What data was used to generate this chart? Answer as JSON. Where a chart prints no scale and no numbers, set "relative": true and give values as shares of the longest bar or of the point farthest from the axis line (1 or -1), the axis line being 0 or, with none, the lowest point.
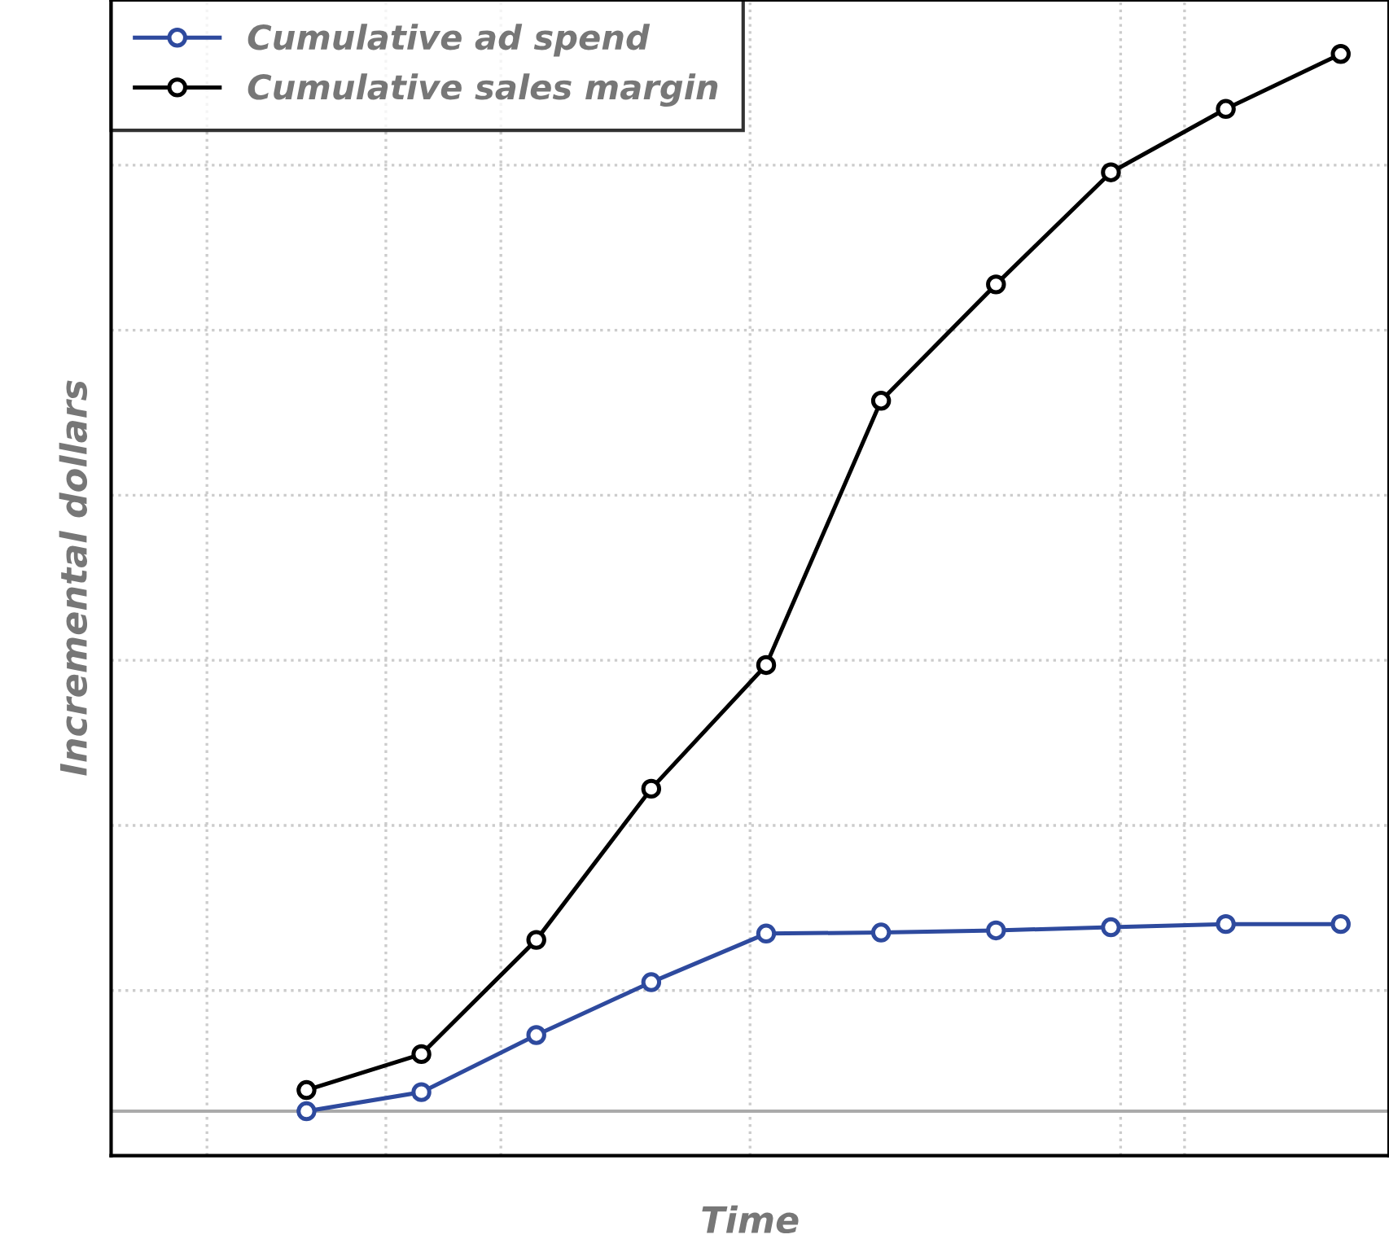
{
  "chart_data": {
    "type": "line",
    "relative": true,
    "xlabel": "Time",
    "ylabel": "Incremental dollars",
    "categories": [
      null,
      null,
      null,
      null,
      null,
      null,
      null,
      null,
      null,
      null
    ],
    "series": [
      {
        "name": "Cumulative ad spend",
        "color": "#2e4a9e",
        "values": [
          0,
          0.018,
          0.072,
          0.122,
          0.168,
          0.169,
          0.171,
          0.174,
          0.177,
          0.177
        ]
      },
      {
        "name": "Cumulative sales margin",
        "color": "#000000",
        "values": [
          0.02,
          0.054,
          0.162,
          0.305,
          0.422,
          0.672,
          0.782,
          0.888,
          0.948,
          1
        ]
      }
    ],
    "marker": "circle",
    "legend": "top left",
    "grid": true
  }
}
